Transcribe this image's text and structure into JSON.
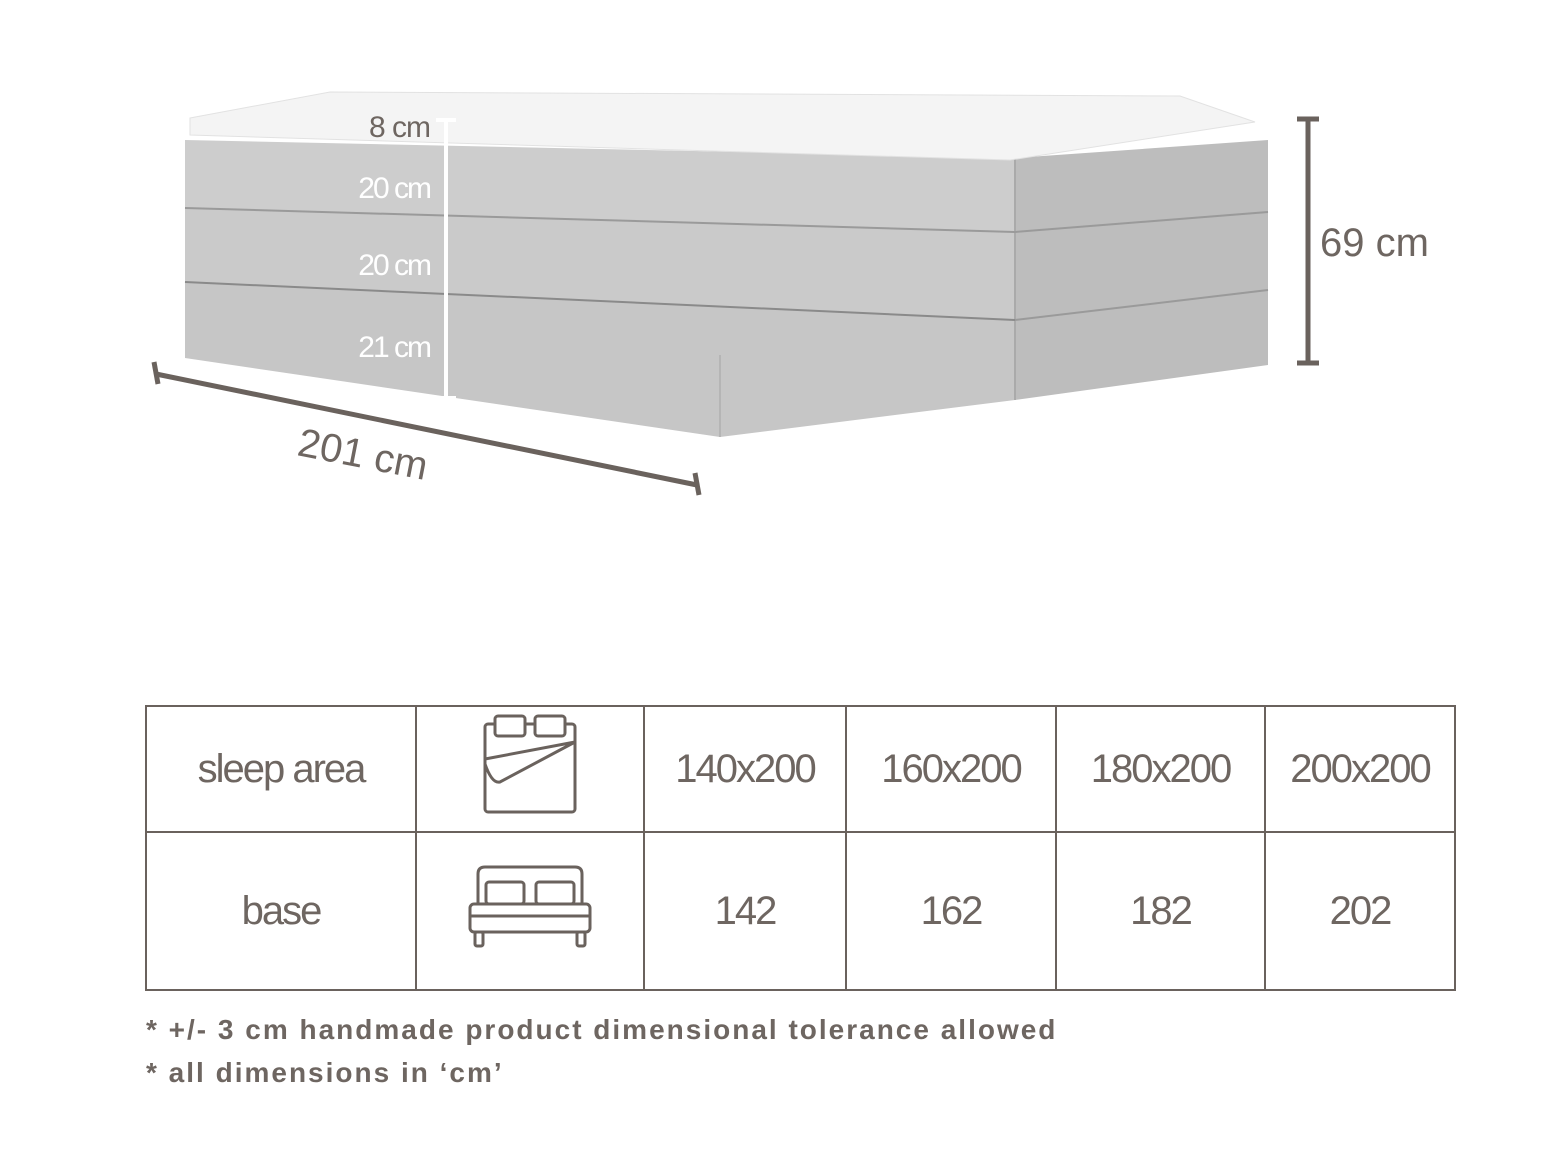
{
  "diagram": {
    "layer_heights": [
      "8 cm",
      "20 cm",
      "20 cm",
      "21 cm"
    ],
    "total_height": "69 cm",
    "length": "201 cm"
  },
  "table": {
    "rows": [
      {
        "label": "sleep area",
        "icon": "mattress-duvet-icon",
        "values": [
          "140x200",
          "160x200",
          "180x200",
          "200x200"
        ]
      },
      {
        "label": "base",
        "icon": "bed-icon",
        "values": [
          "142",
          "162",
          "182",
          "202"
        ]
      }
    ]
  },
  "notes": [
    "* +/- 3 cm handmade product dimensional tolerance allowed",
    "* all dimensions in ‘cm’"
  ],
  "colors": {
    "text": "#6e6661",
    "line": "#6a625d",
    "fabric": "#c9c9c9",
    "topper": "#f4f4f4"
  }
}
